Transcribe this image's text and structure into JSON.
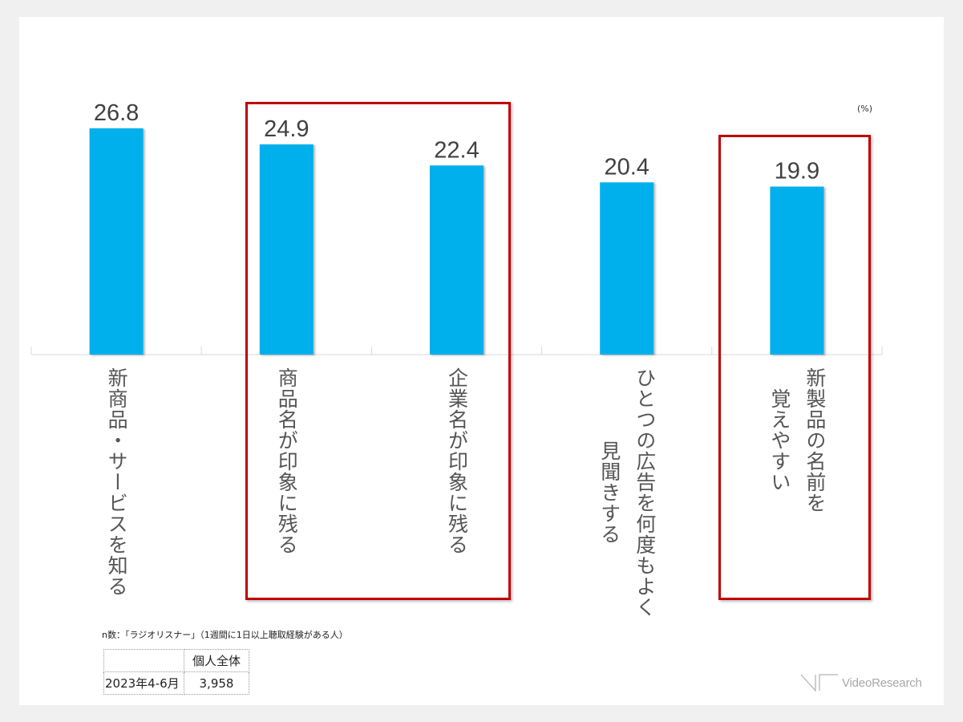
{
  "chart_data": {
    "type": "bar",
    "title": "",
    "unit_label": "(%)",
    "xlabel": "",
    "ylabel": "",
    "ylim": [
      0,
      30
    ],
    "grid": false,
    "bar_color": "#00b0ec",
    "categories": [
      [
        "新商品・サービスを知る"
      ],
      [
        "商品名が印象に残る"
      ],
      [
        "企業名が印象に残る"
      ],
      [
        "ひとつの広告を何度もよく",
        "見聞きする"
      ],
      [
        "新製品の名前を",
        "覚えやすい"
      ]
    ],
    "values": [
      26.8,
      24.9,
      22.4,
      20.4,
      19.9
    ],
    "value_labels": [
      "26.8",
      "24.9",
      "22.4",
      "20.4",
      "19.9"
    ],
    "highlighted_groups": [
      {
        "categories": [
          "商品名が印象に残る",
          "企業名が印象に残る"
        ],
        "color": "#c00000"
      },
      {
        "categories": [
          "新製品の名前を覚えやすい"
        ],
        "color": "#c00000"
      }
    ]
  },
  "footnote": "n数：「ラジオリスナー」（1週間に1日以上聴取経験がある人）",
  "sample_table": {
    "header": [
      "",
      "個人全体"
    ],
    "rows": [
      [
        "2023年4-6月",
        "3,958"
      ]
    ]
  },
  "logo": {
    "text": "VideoResearch",
    "icon": "video-research-logo-icon"
  }
}
